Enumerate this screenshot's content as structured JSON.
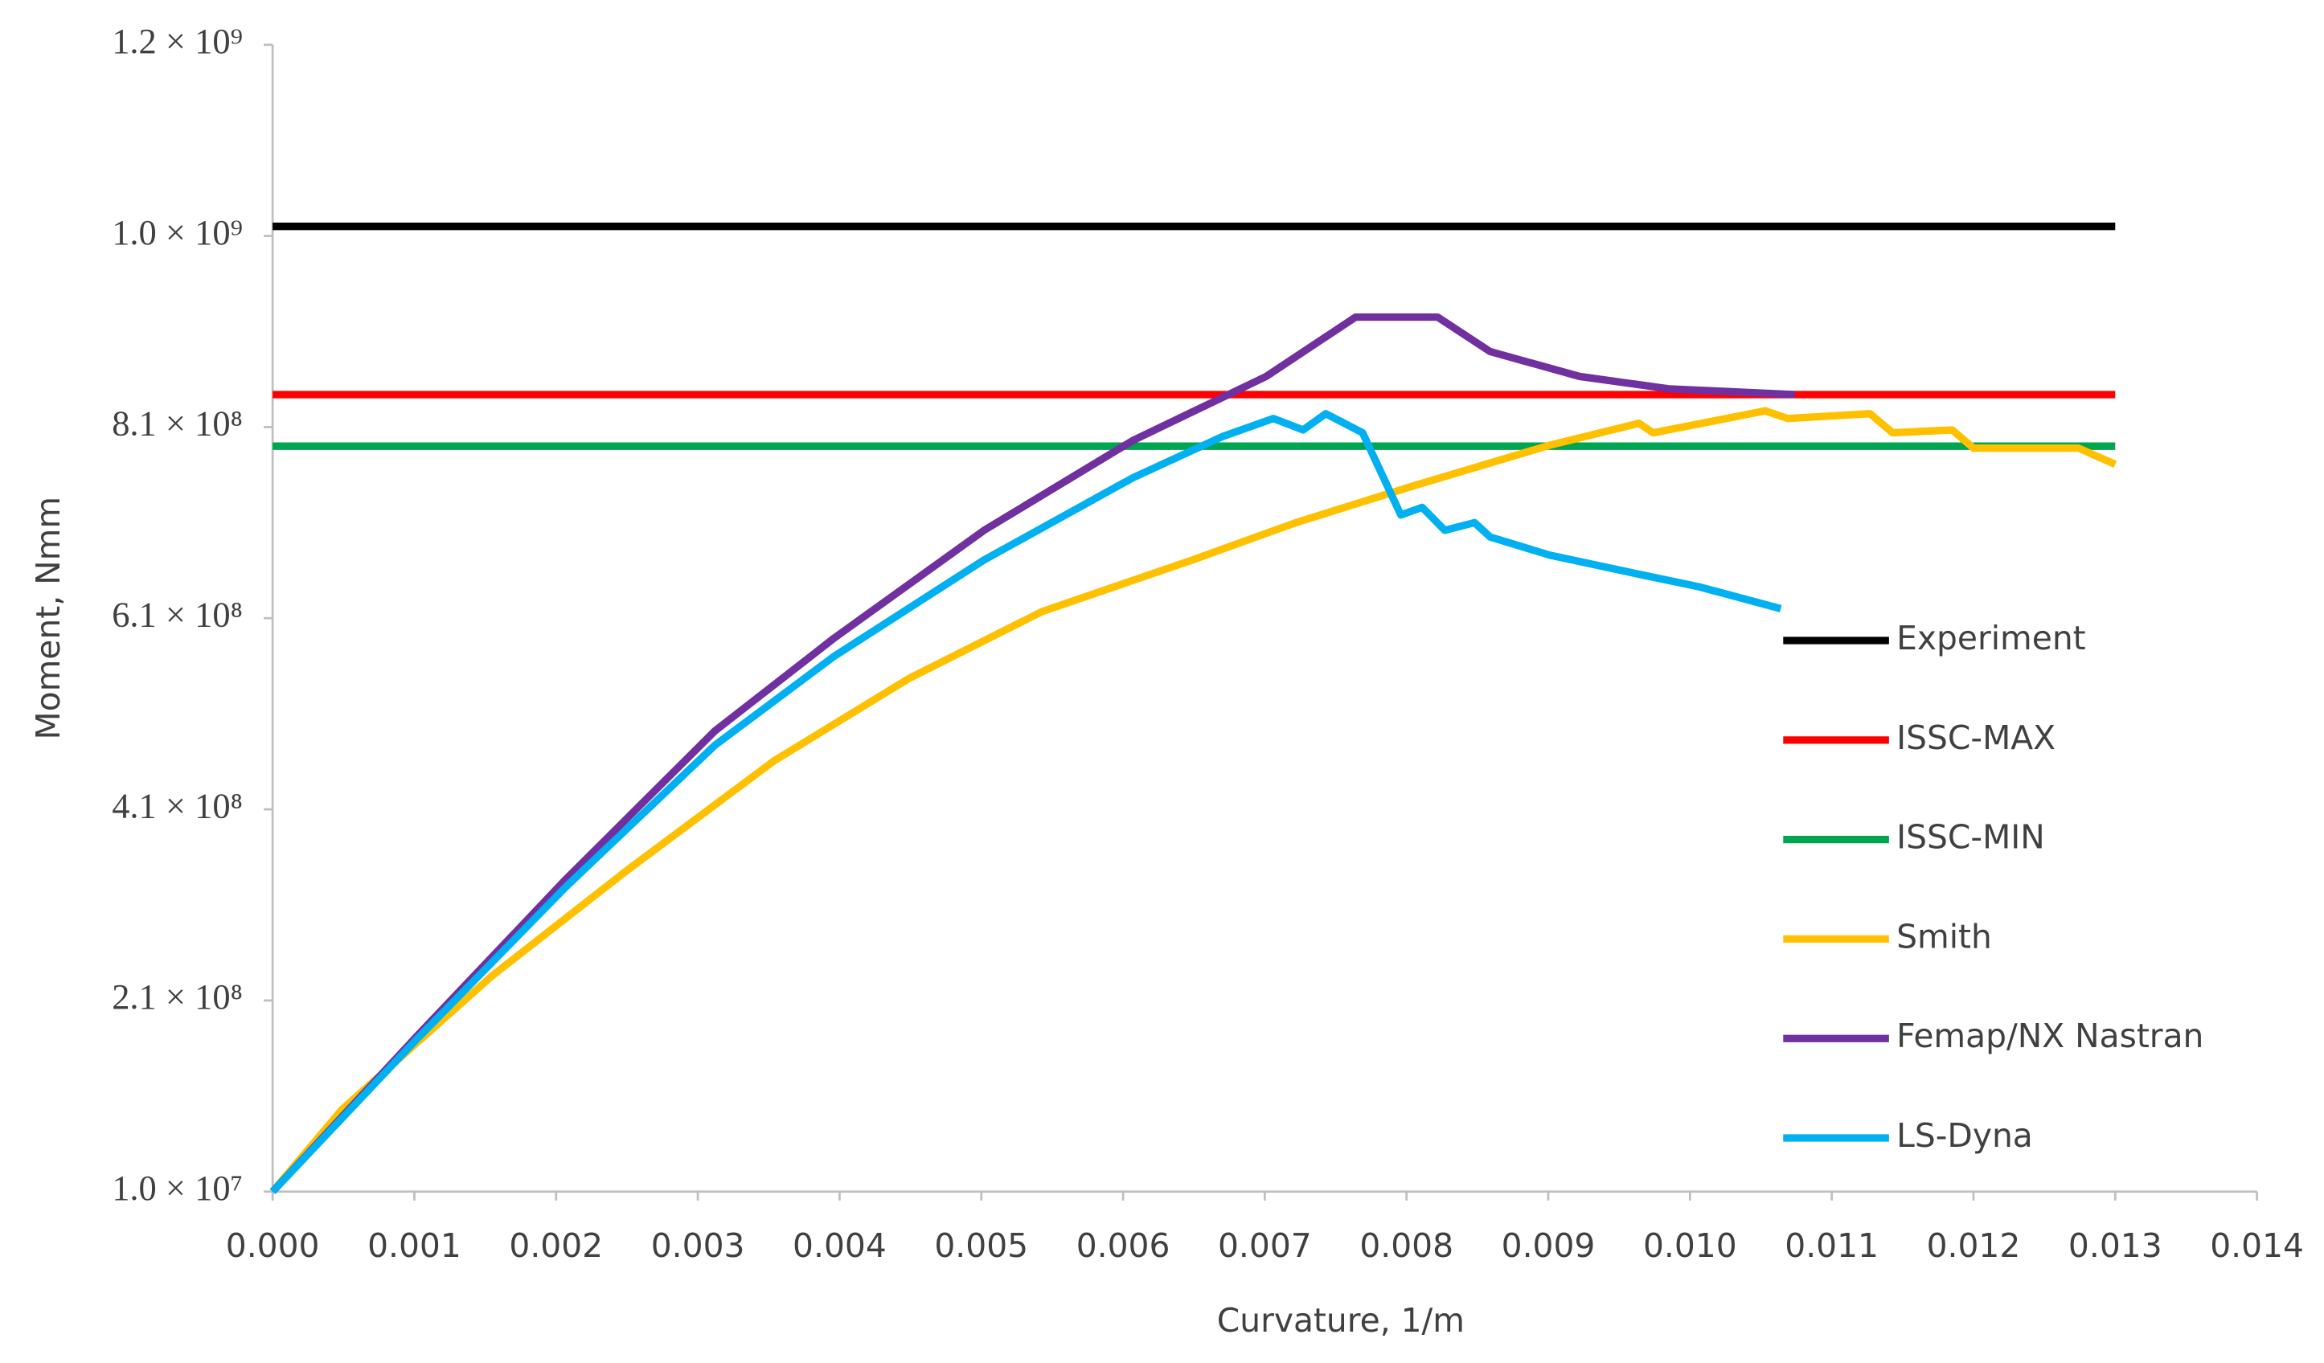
{
  "chart_data": {
    "type": "line",
    "xlabel": "Curvature, 1/m",
    "ylabel": "Moment, Nmm",
    "xlim": [
      0,
      0.014
    ],
    "xticks": [
      {
        "value": 0,
        "label": "0.000"
      },
      0.001,
      0.002,
      0.003,
      0.004,
      0.005,
      0.006,
      0.007,
      0.008,
      0.009,
      {
        "value": 0.01,
        "label": "0.010"
      },
      0.011,
      0.012,
      0.013,
      0.014
    ],
    "ylim": [
      10000000,
      1210000000
    ],
    "yticks": [
      {
        "value": 10000000,
        "label": "1.0 × 10⁷"
      },
      {
        "value": 210000000,
        "label": "2.1 × 10⁸"
      },
      {
        "value": 410000000,
        "label": "4.1 × 10⁸"
      },
      {
        "value": 610000000,
        "label": "6.1 × 10⁸"
      },
      {
        "value": 810000000,
        "label": "8.1 × 10⁸"
      },
      {
        "value": 1010000000,
        "label": "1.0 × 10⁹"
      },
      {
        "value": 1210000000,
        "label": "1.2 × 10⁹"
      }
    ],
    "grid": false,
    "legend": "right",
    "series": [
      {
        "name": "Experiment",
        "color": "#000000",
        "x": [
          0,
          0.013
        ],
        "values": [
          1020000000,
          1020000000
        ]
      },
      {
        "name": "ISSC-MAX",
        "color": "#ff0000",
        "x": [
          0,
          0.013
        ],
        "values": [
          844000000,
          844000000
        ]
      },
      {
        "name": "ISSC-MIN",
        "color": "#00a64f",
        "x": [
          0,
          0.013
        ],
        "values": [
          790000000,
          790000000
        ]
      },
      {
        "name": "Smith",
        "color": "#ffc000",
        "x": [
          0,
          0.00049,
          0.00102,
          0.00155,
          0.00249,
          0.00354,
          0.00449,
          0.00543,
          0.00649,
          0.00722,
          0.00806,
          0.00901,
          0.00964,
          0.00974,
          0.01053,
          0.01069,
          0.01127,
          0.01143,
          0.01185,
          0.012,
          0.01274,
          0.013
        ],
        "values": [
          10000000,
          96000000,
          166000000,
          236000000,
          345000000,
          461000000,
          547000000,
          617000000,
          671000000,
          710000000,
          749000000,
          791000000,
          814000000,
          804000000,
          827000000,
          819000000,
          824000000,
          804000000,
          807000000,
          788000000,
          788000000,
          771000000
        ]
      },
      {
        "name": "Femap/NX Nastran",
        "color": "#7030a0",
        "x": [
          0,
          0.00102,
          0.00207,
          0.00312,
          0.00396,
          0.00502,
          0.00607,
          0.00701,
          0.00764,
          0.00822,
          0.00859,
          0.00922,
          0.00985,
          0.01074
        ],
        "values": [
          10000000,
          173000000,
          337000000,
          492000000,
          589000000,
          702000000,
          796000000,
          863000000,
          925000000,
          925000000,
          889000000,
          863000000,
          850000000,
          844000000
        ]
      },
      {
        "name": "LS-Dyna",
        "color": "#00b0f0",
        "x": [
          0,
          0.00102,
          0.00207,
          0.00312,
          0.00396,
          0.00502,
          0.00607,
          0.0067,
          0.00706,
          0.00727,
          0.00743,
          0.00769,
          0.00796,
          0.00811,
          0.00827,
          0.00848,
          0.00859,
          0.00901,
          0.00964,
          0.01006,
          0.01064
        ],
        "values": [
          10000000,
          170000000,
          329000000,
          477000000,
          570000000,
          671000000,
          757000000,
          800000000,
          819000000,
          807000000,
          824000000,
          804000000,
          718000000,
          726000000,
          702000000,
          710000000,
          695000000,
          676000000,
          656000000,
          643000000,
          620000000
        ]
      }
    ]
  }
}
